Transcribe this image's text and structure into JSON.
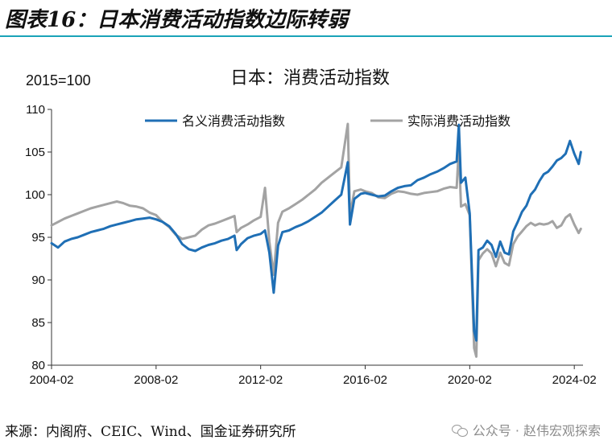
{
  "header": {
    "title": "图表16：日本消费活动指数边际转弱"
  },
  "footer": {
    "source": "来源：内阁府、CEIC、Wind、国金证券研究所",
    "watermark": "公众号 · 赵伟宏观探索"
  },
  "colors": {
    "nominal": "#1f6fb5",
    "real": "#a3a3a3",
    "accent": "#1aa3b8"
  },
  "chart_data": {
    "type": "line",
    "title": "日本：消费活动指数",
    "unit_label": "2015=100",
    "xlabel": "",
    "ylabel": "",
    "x_ticks": [
      "2004-02",
      "2008-02",
      "2012-02",
      "2016-02",
      "2020-02",
      "2024-02"
    ],
    "y_ticks": [
      80,
      85,
      90,
      95,
      100,
      105,
      110
    ],
    "ylim": [
      80,
      110
    ],
    "grid": false,
    "legend_position": "top",
    "series": [
      {
        "name": "名义消费活动指数",
        "color": "#1f6fb5",
        "points": [
          [
            "2004-02",
            94.3
          ],
          [
            "2004-05",
            93.8
          ],
          [
            "2004-08",
            94.5
          ],
          [
            "2004-11",
            94.8
          ],
          [
            "2005-02",
            95.0
          ],
          [
            "2005-05",
            95.3
          ],
          [
            "2005-08",
            95.6
          ],
          [
            "2005-11",
            95.8
          ],
          [
            "2006-02",
            96.0
          ],
          [
            "2006-05",
            96.3
          ],
          [
            "2006-08",
            96.5
          ],
          [
            "2006-11",
            96.7
          ],
          [
            "2007-02",
            96.9
          ],
          [
            "2007-05",
            97.1
          ],
          [
            "2007-08",
            97.2
          ],
          [
            "2007-11",
            97.3
          ],
          [
            "2008-02",
            97.1
          ],
          [
            "2008-05",
            96.8
          ],
          [
            "2008-08",
            96.3
          ],
          [
            "2008-11",
            95.4
          ],
          [
            "2009-02",
            94.2
          ],
          [
            "2009-05",
            93.6
          ],
          [
            "2009-08",
            93.4
          ],
          [
            "2009-11",
            93.8
          ],
          [
            "2010-02",
            94.1
          ],
          [
            "2010-05",
            94.3
          ],
          [
            "2010-08",
            94.6
          ],
          [
            "2010-11",
            94.8
          ],
          [
            "2011-02",
            95.2
          ],
          [
            "2011-03",
            93.5
          ],
          [
            "2011-05",
            94.2
          ],
          [
            "2011-08",
            94.9
          ],
          [
            "2011-11",
            95.2
          ],
          [
            "2012-02",
            95.4
          ],
          [
            "2012-04",
            95.8
          ],
          [
            "2012-06",
            93.2
          ],
          [
            "2012-08",
            88.5
          ],
          [
            "2012-10",
            94.0
          ],
          [
            "2012-12",
            95.6
          ],
          [
            "2013-03",
            95.8
          ],
          [
            "2013-06",
            96.2
          ],
          [
            "2013-09",
            96.5
          ],
          [
            "2013-12",
            96.9
          ],
          [
            "2014-03",
            97.4
          ],
          [
            "2014-06",
            97.9
          ],
          [
            "2014-09",
            98.6
          ],
          [
            "2014-12",
            99.3
          ],
          [
            "2015-03",
            100.0
          ],
          [
            "2015-06",
            103.8
          ],
          [
            "2015-07",
            96.5
          ],
          [
            "2015-09",
            99.5
          ],
          [
            "2015-12",
            100.1
          ],
          [
            "2016-02",
            100.2
          ],
          [
            "2016-05",
            100.0
          ],
          [
            "2016-08",
            99.8
          ],
          [
            "2016-11",
            99.9
          ],
          [
            "2017-02",
            100.4
          ],
          [
            "2017-05",
            100.8
          ],
          [
            "2017-08",
            101.0
          ],
          [
            "2017-11",
            101.1
          ],
          [
            "2018-02",
            101.7
          ],
          [
            "2018-05",
            102.0
          ],
          [
            "2018-08",
            102.4
          ],
          [
            "2018-11",
            102.7
          ],
          [
            "2019-02",
            103.1
          ],
          [
            "2019-05",
            103.6
          ],
          [
            "2019-08",
            103.9
          ],
          [
            "2019-09",
            108.2
          ],
          [
            "2019-10",
            101.4
          ],
          [
            "2019-12",
            102.0
          ],
          [
            "2020-02",
            97.8
          ],
          [
            "2020-04",
            84.0
          ],
          [
            "2020-05",
            82.9
          ],
          [
            "2020-06",
            93.5
          ],
          [
            "2020-08",
            93.8
          ],
          [
            "2020-10",
            94.6
          ],
          [
            "2020-12",
            94.1
          ],
          [
            "2021-02",
            92.7
          ],
          [
            "2021-04",
            94.5
          ],
          [
            "2021-06",
            93.2
          ],
          [
            "2021-08",
            93.0
          ],
          [
            "2021-10",
            95.7
          ],
          [
            "2021-12",
            96.8
          ],
          [
            "2022-02",
            98.0
          ],
          [
            "2022-04",
            98.7
          ],
          [
            "2022-06",
            100.0
          ],
          [
            "2022-08",
            100.6
          ],
          [
            "2022-10",
            101.6
          ],
          [
            "2022-12",
            102.4
          ],
          [
            "2023-02",
            102.7
          ],
          [
            "2023-04",
            103.3
          ],
          [
            "2023-06",
            104.0
          ],
          [
            "2023-08",
            104.3
          ],
          [
            "2023-10",
            104.8
          ],
          [
            "2023-12",
            106.3
          ],
          [
            "2024-02",
            104.8
          ],
          [
            "2024-04",
            103.6
          ],
          [
            "2024-05",
            105.0
          ]
        ]
      },
      {
        "name": "实际消费活动指数",
        "color": "#a3a3a3",
        "points": [
          [
            "2004-02",
            96.4
          ],
          [
            "2004-05",
            96.8
          ],
          [
            "2004-08",
            97.2
          ],
          [
            "2004-11",
            97.5
          ],
          [
            "2005-02",
            97.8
          ],
          [
            "2005-05",
            98.1
          ],
          [
            "2005-08",
            98.4
          ],
          [
            "2005-11",
            98.6
          ],
          [
            "2006-02",
            98.8
          ],
          [
            "2006-05",
            99.0
          ],
          [
            "2006-08",
            99.2
          ],
          [
            "2006-11",
            99.0
          ],
          [
            "2007-02",
            98.7
          ],
          [
            "2007-05",
            98.6
          ],
          [
            "2007-08",
            98.4
          ],
          [
            "2007-11",
            97.9
          ],
          [
            "2008-02",
            97.6
          ],
          [
            "2008-05",
            96.8
          ],
          [
            "2008-08",
            96.2
          ],
          [
            "2008-11",
            95.3
          ],
          [
            "2009-02",
            94.8
          ],
          [
            "2009-05",
            95.0
          ],
          [
            "2009-08",
            95.2
          ],
          [
            "2009-11",
            95.9
          ],
          [
            "2010-02",
            96.4
          ],
          [
            "2010-05",
            96.6
          ],
          [
            "2010-08",
            96.9
          ],
          [
            "2010-11",
            97.2
          ],
          [
            "2011-02",
            97.5
          ],
          [
            "2011-03",
            95.6
          ],
          [
            "2011-05",
            96.1
          ],
          [
            "2011-08",
            96.5
          ],
          [
            "2011-11",
            97.0
          ],
          [
            "2012-02",
            97.4
          ],
          [
            "2012-04",
            100.8
          ],
          [
            "2012-06",
            94.5
          ],
          [
            "2012-08",
            90.6
          ],
          [
            "2012-10",
            96.7
          ],
          [
            "2012-12",
            98.0
          ],
          [
            "2013-03",
            98.4
          ],
          [
            "2013-06",
            98.9
          ],
          [
            "2013-09",
            99.4
          ],
          [
            "2013-12",
            100.0
          ],
          [
            "2014-03",
            100.6
          ],
          [
            "2014-06",
            101.4
          ],
          [
            "2014-09",
            102.0
          ],
          [
            "2014-12",
            102.6
          ],
          [
            "2015-03",
            103.2
          ],
          [
            "2015-06",
            108.3
          ],
          [
            "2015-07",
            97.6
          ],
          [
            "2015-09",
            100.4
          ],
          [
            "2015-12",
            100.6
          ],
          [
            "2016-02",
            100.4
          ],
          [
            "2016-05",
            100.2
          ],
          [
            "2016-08",
            99.7
          ],
          [
            "2016-11",
            99.6
          ],
          [
            "2017-02",
            100.1
          ],
          [
            "2017-05",
            100.4
          ],
          [
            "2017-08",
            100.3
          ],
          [
            "2017-11",
            100.1
          ],
          [
            "2018-02",
            100.0
          ],
          [
            "2018-05",
            100.2
          ],
          [
            "2018-08",
            100.3
          ],
          [
            "2018-11",
            100.4
          ],
          [
            "2019-02",
            100.7
          ],
          [
            "2019-05",
            100.9
          ],
          [
            "2019-08",
            100.8
          ],
          [
            "2019-09",
            105.5
          ],
          [
            "2019-10",
            98.6
          ],
          [
            "2019-12",
            98.9
          ],
          [
            "2020-02",
            97.6
          ],
          [
            "2020-04",
            82.0
          ],
          [
            "2020-05",
            81.0
          ],
          [
            "2020-06",
            92.3
          ],
          [
            "2020-08",
            93.1
          ],
          [
            "2020-10",
            93.6
          ],
          [
            "2020-12",
            93.1
          ],
          [
            "2021-02",
            91.6
          ],
          [
            "2021-04",
            93.2
          ],
          [
            "2021-06",
            92.0
          ],
          [
            "2021-08",
            91.7
          ],
          [
            "2021-10",
            94.2
          ],
          [
            "2021-12",
            95.1
          ],
          [
            "2022-02",
            95.7
          ],
          [
            "2022-04",
            96.3
          ],
          [
            "2022-06",
            96.7
          ],
          [
            "2022-08",
            96.4
          ],
          [
            "2022-10",
            96.6
          ],
          [
            "2022-12",
            96.5
          ],
          [
            "2023-02",
            96.6
          ],
          [
            "2023-04",
            96.9
          ],
          [
            "2023-06",
            96.1
          ],
          [
            "2023-08",
            96.4
          ],
          [
            "2023-10",
            97.3
          ],
          [
            "2023-12",
            97.7
          ],
          [
            "2024-02",
            96.5
          ],
          [
            "2024-04",
            95.5
          ],
          [
            "2024-05",
            96.0
          ]
        ]
      }
    ]
  }
}
